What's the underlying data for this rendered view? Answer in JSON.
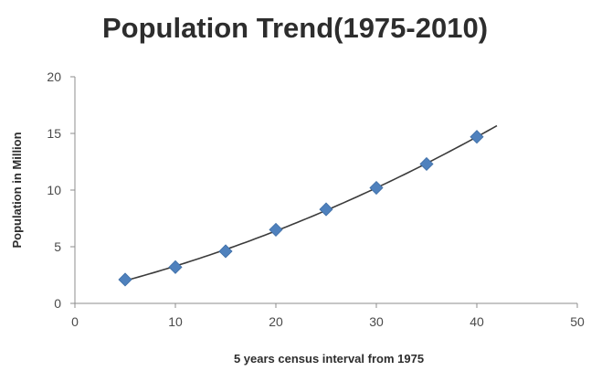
{
  "chart_data": {
    "type": "scatter",
    "title": "Population Trend(1975-2010)",
    "xlabel": "5 years census interval from 1975",
    "ylabel": "Population in Million",
    "xlim": [
      0,
      50
    ],
    "ylim": [
      0,
      20
    ],
    "x_ticks": [
      0,
      10,
      20,
      30,
      40,
      50
    ],
    "y_ticks": [
      0,
      5,
      10,
      15,
      20
    ],
    "grid": false,
    "legend": "none",
    "series": [
      {
        "x": [
          5,
          10,
          15,
          20,
          25,
          30,
          35,
          40
        ],
        "y": [
          2.1,
          3.2,
          4.6,
          6.5,
          8.3,
          10.2,
          12.3,
          14.7
        ],
        "marker": "diamond",
        "color": "#4f81bd"
      }
    ],
    "trendline": {
      "type": "polynomial",
      "x_range": [
        5,
        42
      ],
      "color": "#3b3b3b"
    }
  }
}
